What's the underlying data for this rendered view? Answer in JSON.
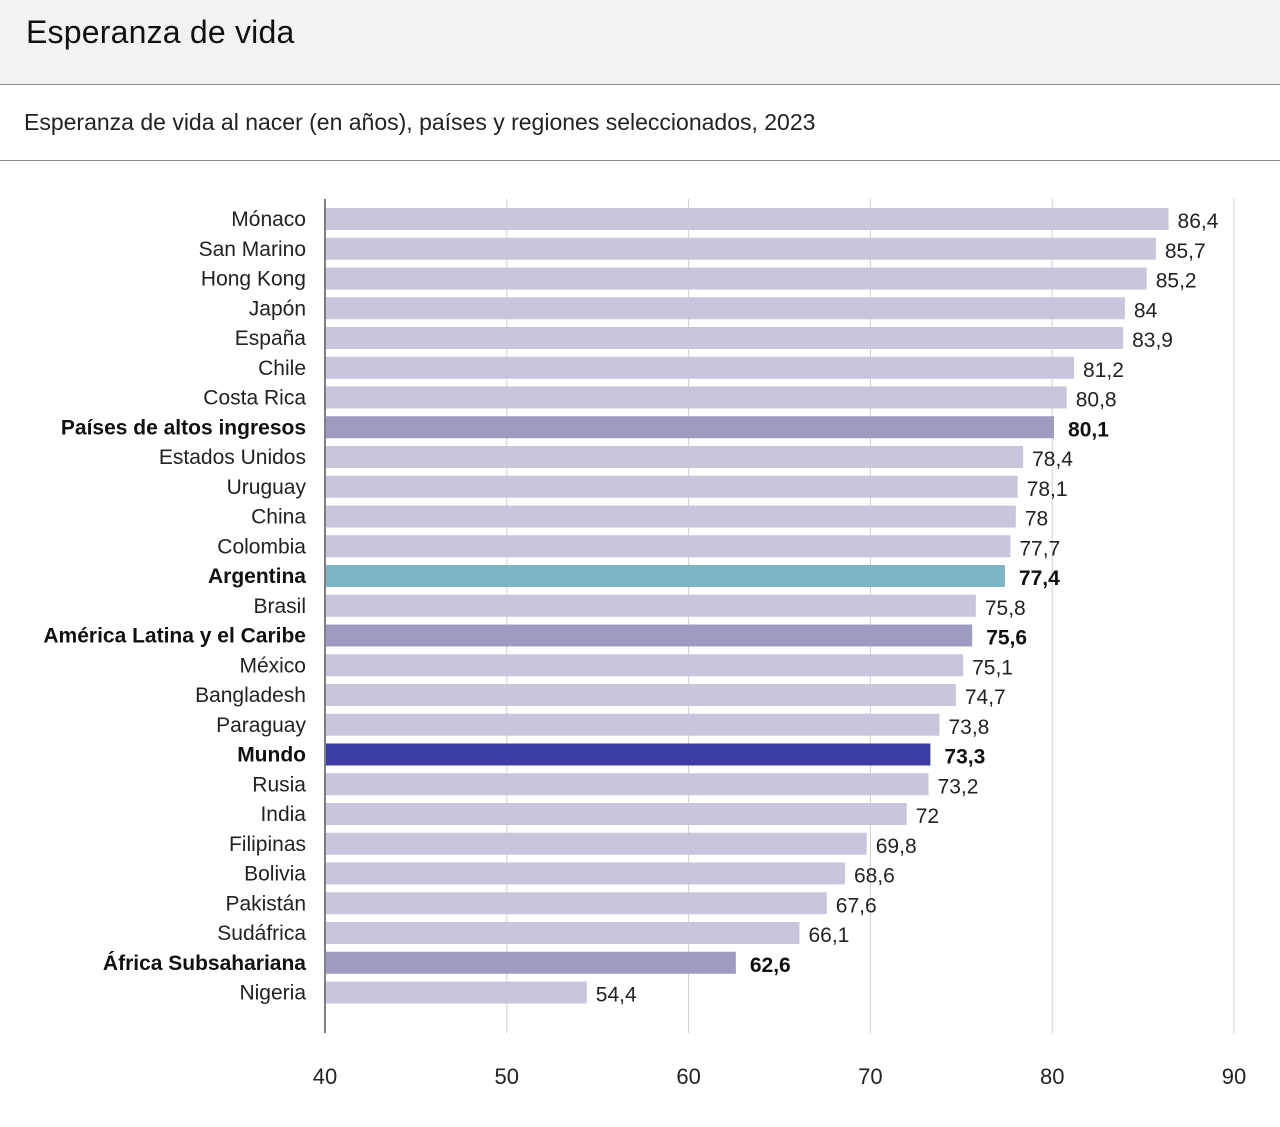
{
  "header": {
    "title": "Esperanza de vida",
    "subtitle": "Esperanza de vida al nacer (en años), países y regiones seleccionados, 2023"
  },
  "colors": {
    "default": "#c7c6dc",
    "region": "#9c9cc0",
    "argentina": "#7db4c6",
    "world": "#3c3ca3",
    "grid": "#cfcfcf",
    "axis": "#555555"
  },
  "chart_data": {
    "type": "bar",
    "orientation": "horizontal",
    "title": "Esperanza de vida",
    "subtitle": "Esperanza de vida al nacer (en años), países y regiones seleccionados, 2023",
    "xlim": [
      40,
      90
    ],
    "ticks": [
      40,
      50,
      60,
      70,
      80,
      90
    ],
    "grid": true,
    "categories": [
      "Mónaco",
      "San Marino",
      "Hong Kong",
      "Japón",
      "España",
      "Chile",
      "Costa Rica",
      "Países de altos ingresos",
      "Estados Unidos",
      "Uruguay",
      "China",
      "Colombia",
      "Argentina",
      "Brasil",
      "América Latina y el Caribe",
      "México",
      "Bangladesh",
      "Paraguay",
      "Mundo",
      "Rusia",
      "India",
      "Filipinas",
      "Bolivia",
      "Pakistán",
      "Sudáfrica",
      "África Subsahariana",
      "Nigeria"
    ],
    "values": [
      86.4,
      85.7,
      85.2,
      84,
      83.9,
      81.2,
      80.8,
      80.1,
      78.4,
      78.1,
      78,
      77.7,
      77.4,
      75.8,
      75.6,
      75.1,
      74.7,
      73.8,
      73.3,
      73.2,
      72,
      69.8,
      68.6,
      67.6,
      66.1,
      62.6,
      54.4
    ],
    "value_labels": [
      "86,4",
      "85,7",
      "85,2",
      "84",
      "83,9",
      "81,2",
      "80,8",
      "80,1",
      "78,4",
      "78,1",
      "78",
      "77,7",
      "77,4",
      "75,8",
      "75,6",
      "75,1",
      "74,7",
      "73,8",
      "73,3",
      "73,2",
      "72",
      "69,8",
      "68,6",
      "67,6",
      "66,1",
      "62,6",
      "54,4"
    ],
    "highlight": [
      "default",
      "default",
      "default",
      "default",
      "default",
      "default",
      "default",
      "region",
      "default",
      "default",
      "default",
      "default",
      "argentina",
      "default",
      "region",
      "default",
      "default",
      "default",
      "world",
      "default",
      "default",
      "default",
      "default",
      "default",
      "default",
      "region",
      "default"
    ]
  }
}
